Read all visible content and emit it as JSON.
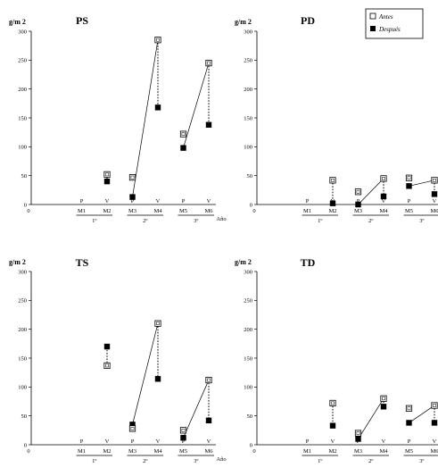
{
  "legend": {
    "before": "Antes",
    "after": "Después"
  },
  "chart_data": [
    {
      "type": "scatter",
      "title": "PS",
      "ylabel": "g/m 2",
      "ylim": [
        0,
        300
      ],
      "yticks": [
        0,
        50,
        100,
        150,
        200,
        250,
        300
      ],
      "x_months": [
        "M1",
        "M2",
        "M3",
        "M4",
        "M5",
        "M6"
      ],
      "x_seasons": [
        "P",
        "V",
        "P",
        "V",
        "P",
        "V"
      ],
      "x_years": [
        "1º",
        "2º",
        "3º"
      ],
      "x_unit": "Año",
      "series": [
        {
          "name": "Antes",
          "marker": "open-square",
          "values": [
            null,
            52,
            47,
            285,
            122,
            245
          ]
        },
        {
          "name": "Después",
          "marker": "filled-square",
          "values": [
            null,
            40,
            13,
            168,
            98,
            138
          ]
        }
      ]
    },
    {
      "type": "scatter",
      "title": "PD",
      "ylabel": "g/m 2",
      "ylim": [
        0,
        300
      ],
      "yticks": [
        0,
        50,
        100,
        150,
        200,
        250,
        300
      ],
      "x_months": [
        "M1",
        "M2",
        "M3",
        "M4",
        "M5",
        "M6"
      ],
      "x_seasons": [
        "P",
        "V",
        "P",
        "V",
        "P",
        "V"
      ],
      "x_years": [
        "1º",
        "2º",
        "3º"
      ],
      "x_unit": "Año",
      "series": [
        {
          "name": "Antes",
          "marker": "open-square",
          "values": [
            null,
            42,
            22,
            45,
            46,
            42
          ]
        },
        {
          "name": "Después",
          "marker": "filled-square",
          "values": [
            null,
            2,
            0,
            14,
            32,
            18
          ]
        }
      ]
    },
    {
      "type": "scatter",
      "title": "TS",
      "ylabel": "g/m 2",
      "ylim": [
        0,
        300
      ],
      "yticks": [
        0,
        50,
        100,
        150,
        200,
        250,
        300
      ],
      "x_months": [
        "M1",
        "M2",
        "M3",
        "M4",
        "M5",
        "M6"
      ],
      "x_seasons": [
        "P",
        "V",
        "P",
        "V",
        "P",
        "V"
      ],
      "x_years": [
        "1º",
        "2º",
        "3º"
      ],
      "x_unit": "Año",
      "series": [
        {
          "name": "Antes",
          "marker": "open-square",
          "values": [
            null,
            137,
            28,
            210,
            25,
            112
          ]
        },
        {
          "name": "Después",
          "marker": "filled-square",
          "values": [
            null,
            170,
            35,
            114,
            12,
            42
          ]
        }
      ]
    },
    {
      "type": "scatter",
      "title": "TD",
      "ylabel": "g/m 2",
      "ylim": [
        0,
        300
      ],
      "yticks": [
        0,
        50,
        100,
        150,
        200,
        250,
        300
      ],
      "x_months": [
        "M1",
        "M2",
        "M3",
        "M4",
        "M5",
        "M6"
      ],
      "x_seasons": [
        "P",
        "V",
        "P",
        "V",
        "P",
        "V"
      ],
      "x_years": [
        "1º",
        "2º",
        "3º"
      ],
      "x_unit": "Año",
      "series": [
        {
          "name": "Antes",
          "marker": "open-square",
          "values": [
            null,
            72,
            20,
            80,
            63,
            68
          ]
        },
        {
          "name": "Después",
          "marker": "filled-square",
          "values": [
            null,
            33,
            10,
            66,
            38,
            38
          ]
        }
      ]
    }
  ]
}
